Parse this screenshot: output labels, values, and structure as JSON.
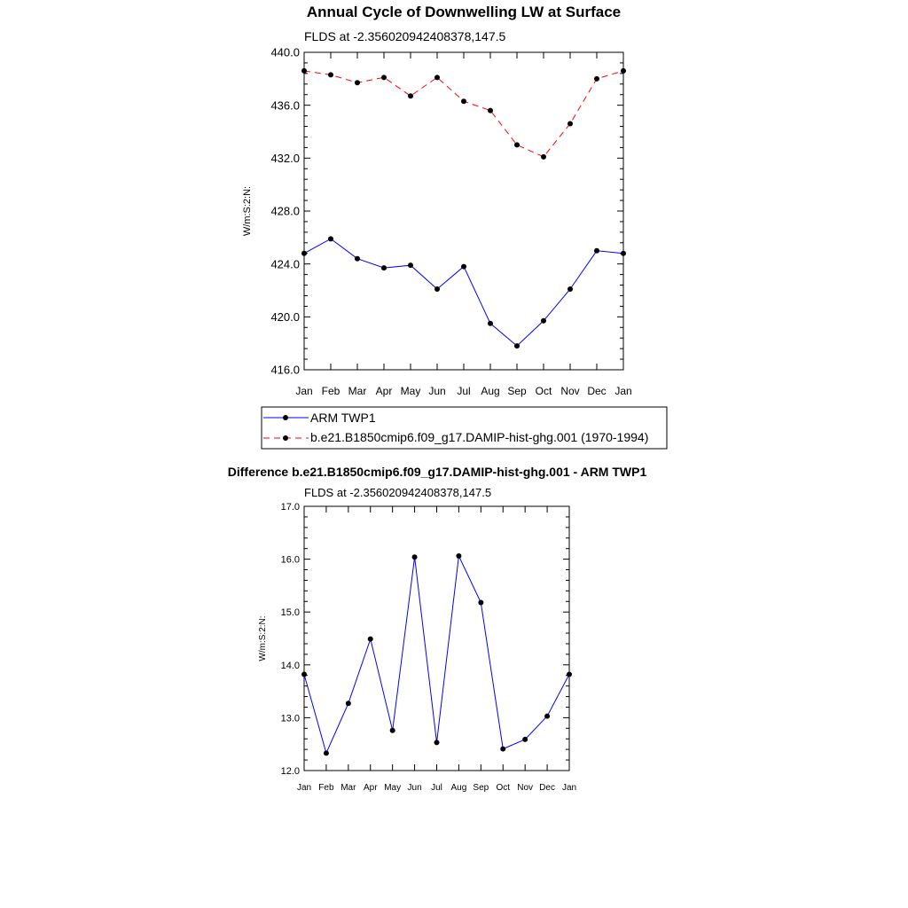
{
  "colors": {
    "obs": "#0000ff",
    "model": "#ff0000",
    "diff": "#0000ff",
    "axis": "#000000",
    "marker": "#000000"
  },
  "chart_data": [
    {
      "type": "line",
      "title": "Annual Cycle of Downwelling LW at Surface",
      "subtitle": "FLDS at -2.356020942408378,147.5",
      "ylabel": "W/m:S:2:N:",
      "xlabel": "",
      "categories": [
        "Jan",
        "Feb",
        "Mar",
        "Apr",
        "May",
        "Jun",
        "Jul",
        "Aug",
        "Sep",
        "Oct",
        "Nov",
        "Dec",
        "Jan"
      ],
      "ylim": [
        416.0,
        440.0
      ],
      "yticks": [
        "416.0",
        "420.0",
        "424.0",
        "428.0",
        "432.0",
        "436.0",
        "440.0"
      ],
      "grid": false,
      "legend_position": "below",
      "series": [
        {
          "name": "ARM TWP1",
          "style": "solid",
          "color": "#0000ff",
          "values": [
            424.8,
            425.9,
            424.4,
            423.7,
            423.9,
            422.1,
            423.8,
            419.5,
            417.8,
            419.7,
            422.1,
            425.0,
            424.8
          ]
        },
        {
          "name": "b.e21.B1850cmip6.f09_g17.DAMIP-hist-ghg.001 (1970-1994)",
          "style": "dashed",
          "color": "#ff0000",
          "values": [
            438.6,
            438.3,
            437.7,
            438.1,
            436.7,
            438.1,
            436.3,
            435.6,
            433.0,
            432.1,
            434.6,
            438.0,
            438.6
          ]
        }
      ]
    },
    {
      "type": "line",
      "title": "Difference b.e21.B1850cmip6.f09_g17.DAMIP-hist-ghg.001 - ARM TWP1",
      "subtitle": "FLDS at -2.356020942408378,147.5",
      "ylabel": "W/m:S:2:N:",
      "xlabel": "",
      "categories": [
        "Jan",
        "Feb",
        "Mar",
        "Apr",
        "May",
        "Jun",
        "Jul",
        "Aug",
        "Sep",
        "Oct",
        "Nov",
        "Dec",
        "Jan"
      ],
      "ylim": [
        12.0,
        17.0
      ],
      "yticks": [
        "12.0",
        "13.0",
        "14.0",
        "15.0",
        "16.0",
        "17.0"
      ],
      "grid": false,
      "series": [
        {
          "style": "solid",
          "color": "#0000ff",
          "values": [
            13.82,
            12.33,
            13.27,
            14.49,
            12.76,
            16.04,
            12.53,
            16.06,
            15.18,
            12.41,
            12.59,
            13.03,
            13.82
          ]
        }
      ]
    }
  ]
}
